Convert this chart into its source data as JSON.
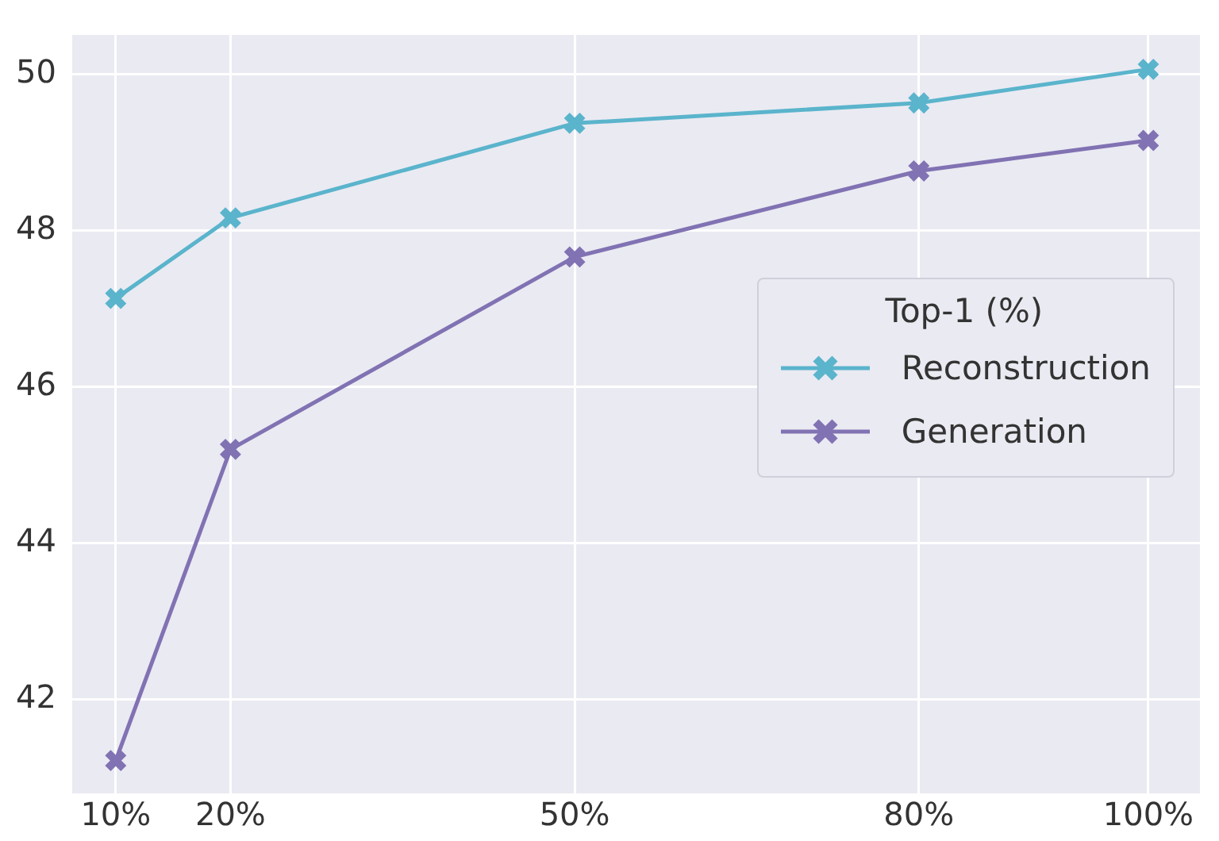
{
  "chart_data": {
    "type": "line",
    "legend_title": "Top-1 (%)",
    "x": [
      10,
      20,
      50,
      80,
      100
    ],
    "series": [
      {
        "name": "Reconstruction",
        "color": "#5ab4cc",
        "values": [
          47.13,
          48.16,
          49.37,
          49.63,
          50.06
        ]
      },
      {
        "name": "Generation",
        "color": "#8172b3",
        "values": [
          41.22,
          45.2,
          47.66,
          48.76,
          49.15
        ]
      }
    ],
    "xlim": [
      6.2,
      104.5
    ],
    "xticks": [
      {
        "value": 10,
        "label": "10%"
      },
      {
        "value": 20,
        "label": "20%"
      },
      {
        "value": 50,
        "label": "50%"
      },
      {
        "value": 80,
        "label": "80%"
      },
      {
        "value": 100,
        "label": "100%"
      }
    ],
    "ylim": [
      40.8,
      50.5
    ],
    "yticks": [
      42,
      44,
      46,
      48,
      50
    ],
    "grid": true,
    "legend": "right",
    "marker": "cross",
    "line_style": "solid"
  }
}
